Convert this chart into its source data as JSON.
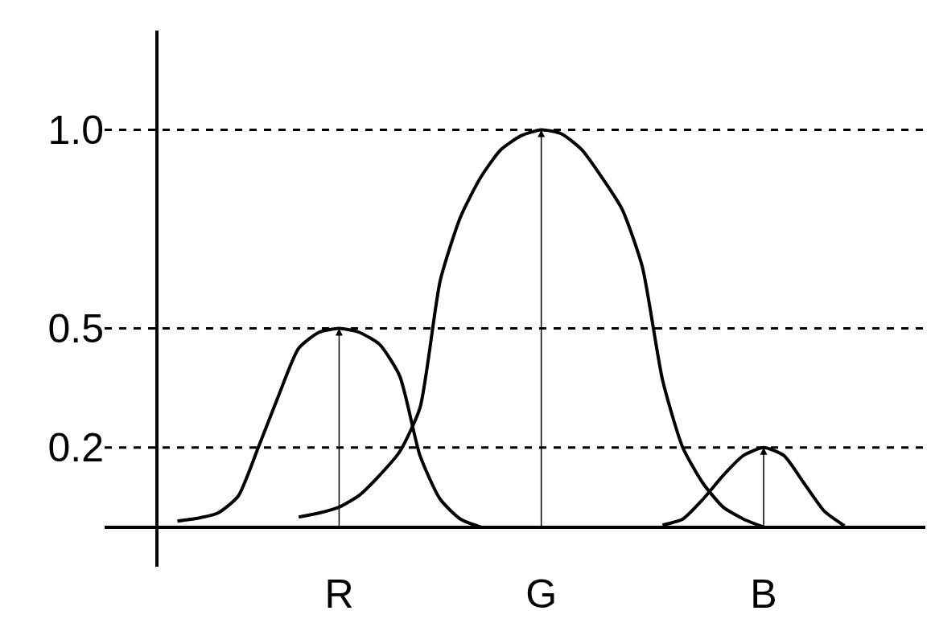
{
  "chart_data": {
    "type": "line",
    "ylim": [
      -0.1,
      1.25
    ],
    "categories": [
      null,
      null,
      null,
      null,
      null,
      null,
      null,
      null,
      "R",
      null,
      null,
      null,
      null,
      null,
      null,
      null,
      null,
      null,
      "G",
      null,
      null,
      null,
      null,
      null,
      null,
      null,
      null,
      null,
      null,
      "B",
      null,
      null,
      null,
      null
    ],
    "yticks": [
      0.2,
      0.5,
      {
        "value": 1.0,
        "label": "1.0"
      }
    ],
    "ref_lines": [
      {
        "axis": "y",
        "value": 0.2,
        "line_style": "dashed",
        "color": "#000000"
      },
      {
        "axis": "y",
        "value": 0.5,
        "line_style": "dashed",
        "color": "#000000"
      },
      {
        "axis": "y",
        "value": 1.0,
        "line_style": "dashed",
        "color": "#000000"
      }
    ],
    "series": [
      {
        "color": "#000000",
        "values": [
          0.015,
          0.022,
          0.035,
          0.077,
          0.2,
          0.33,
          0.45,
          0.49,
          0.5,
          0.49,
          0.46,
          0.38,
          0.18,
          0.07,
          0.02,
          0,
          null,
          null,
          null,
          null,
          null,
          null,
          null,
          null,
          null,
          null,
          null,
          null,
          null,
          null,
          null,
          null,
          null,
          null
        ]
      },
      {
        "color": "#000000",
        "values": [
          null,
          null,
          null,
          null,
          null,
          null,
          0.025,
          0.035,
          0.05,
          0.08,
          0.13,
          0.19,
          0.3,
          0.62,
          0.78,
          0.88,
          0.95,
          0.985,
          1.0,
          0.99,
          0.95,
          0.88,
          0.8,
          0.655,
          0.37,
          0.2,
          0.11,
          0.05,
          0.02,
          0,
          null,
          null,
          null,
          null
        ]
      },
      {
        "color": "#000000",
        "values": [
          null,
          null,
          null,
          null,
          null,
          null,
          null,
          null,
          null,
          null,
          null,
          null,
          null,
          null,
          null,
          null,
          null,
          null,
          null,
          null,
          null,
          null,
          null,
          null,
          0.005,
          0.02,
          0.07,
          0.13,
          0.18,
          0.2,
          0.18,
          0.11,
          0.04,
          0.003
        ]
      }
    ]
  }
}
